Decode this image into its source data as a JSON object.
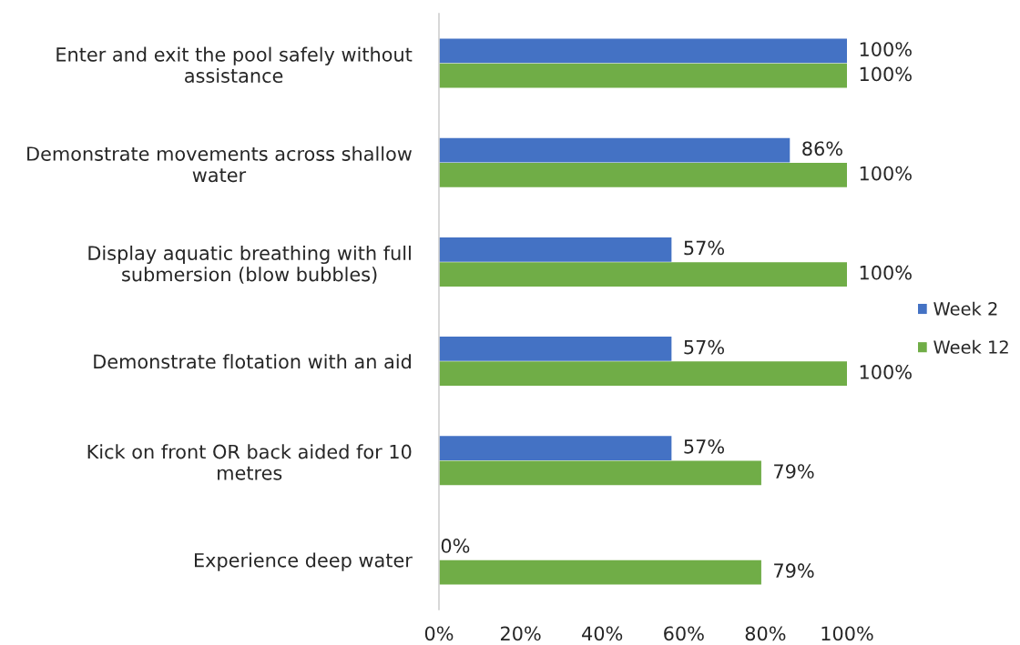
{
  "chart_data": {
    "type": "bar",
    "orientation": "horizontal",
    "categories": [
      "Enter and exit the pool safely without assistance",
      "Demonstrate movements across shallow water",
      "Display aquatic breathing with full submersion (blow bubbles)",
      "Demonstrate flotation with an aid",
      "Kick on front OR back aided for 10 metres",
      "Experience deep water"
    ],
    "series": [
      {
        "name": "Week 2",
        "color": "#4472c4",
        "values": [
          100,
          86,
          57,
          57,
          57,
          0
        ],
        "value_labels": [
          "100%",
          "86%",
          "57%",
          "57%",
          "57%",
          "0%"
        ]
      },
      {
        "name": "Week 12",
        "color": "#70ad47",
        "values": [
          100,
          100,
          100,
          100,
          79,
          79
        ],
        "value_labels": [
          "100%",
          "100%",
          "100%",
          "100%",
          "79%",
          "79%"
        ]
      }
    ],
    "xlim": [
      0,
      100
    ],
    "xticks": [
      {
        "value": 0,
        "label": "0%"
      },
      {
        "value": 20,
        "label": "20%"
      },
      {
        "value": 40,
        "label": "40%"
      },
      {
        "value": 60,
        "label": "60%"
      },
      {
        "value": 80,
        "label": "80%"
      },
      {
        "value": 100,
        "label": "100%"
      }
    ],
    "legend": "right"
  }
}
